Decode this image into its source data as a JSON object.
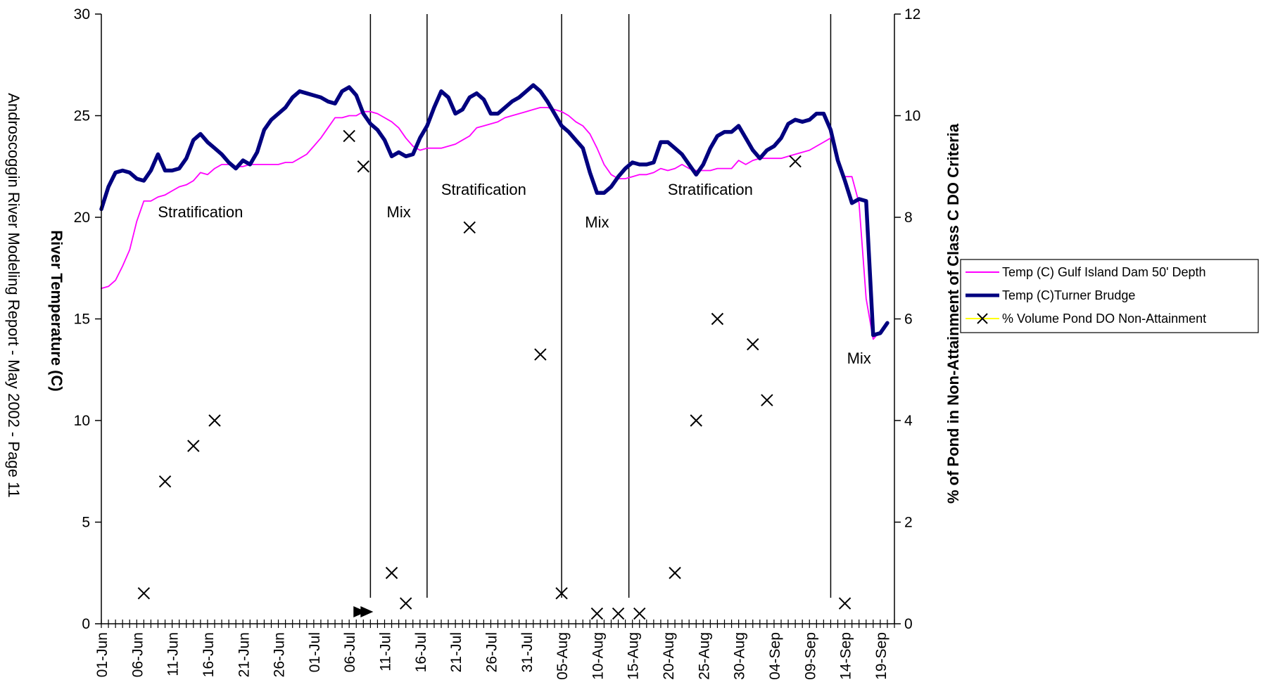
{
  "chart_data": {
    "type": "line",
    "side_note": "Androscoggin River Modeling Report - May 2002 - Page 11",
    "ylabel": "River Temperature (C)",
    "y2label": "% of Pond in Non-Attainment of Class C DO Criteria",
    "ylim": [
      0,
      30
    ],
    "y2lim": [
      0,
      12
    ],
    "yticks": [
      0,
      5,
      10,
      15,
      20,
      25,
      30
    ],
    "y2ticks": [
      0,
      2,
      4,
      6,
      8,
      10,
      12
    ],
    "x_start_day": 0,
    "x_end_day": 112,
    "x_tick_labels": [
      {
        "day": 0,
        "label": "01-Jun"
      },
      {
        "day": 5,
        "label": "06-Jun"
      },
      {
        "day": 10,
        "label": "11-Jun"
      },
      {
        "day": 15,
        "label": "16-Jun"
      },
      {
        "day": 20,
        "label": "21-Jun"
      },
      {
        "day": 25,
        "label": "26-Jun"
      },
      {
        "day": 30,
        "label": "01-Jul"
      },
      {
        "day": 35,
        "label": "06-Jul"
      },
      {
        "day": 40,
        "label": "11-Jul"
      },
      {
        "day": 45,
        "label": "16-Jul"
      },
      {
        "day": 50,
        "label": "21-Jul"
      },
      {
        "day": 55,
        "label": "26-Jul"
      },
      {
        "day": 60,
        "label": "31-Jul"
      },
      {
        "day": 65,
        "label": "05-Aug"
      },
      {
        "day": 70,
        "label": "10-Aug"
      },
      {
        "day": 75,
        "label": "15-Aug"
      },
      {
        "day": 80,
        "label": "20-Aug"
      },
      {
        "day": 85,
        "label": "25-Aug"
      },
      {
        "day": 90,
        "label": "30-Aug"
      },
      {
        "day": 95,
        "label": "04-Sep"
      },
      {
        "day": 100,
        "label": "09-Sep"
      },
      {
        "day": 105,
        "label": "14-Sep"
      },
      {
        "day": 110,
        "label": "19-Sep"
      }
    ],
    "period_dividers_day": [
      38,
      46,
      65,
      74.5,
      103
    ],
    "annotations": [
      {
        "text": "Stratification",
        "day": 14,
        "y": 20
      },
      {
        "text": "Mix",
        "day": 42,
        "y": 20
      },
      {
        "text": "Stratification",
        "day": 54,
        "y": 21.1
      },
      {
        "text": "Mix",
        "day": 70,
        "y": 19.5
      },
      {
        "text": "Stratification",
        "day": 86,
        "y": 21.1
      },
      {
        "text": "Mix",
        "day": 107,
        "y": 12.8
      }
    ],
    "series": [
      {
        "name": "Temp (C) Gulf Island Dam 50' Depth",
        "color": "#ff00ff",
        "axis": "left",
        "points": [
          [
            0,
            16.5
          ],
          [
            1,
            16.6
          ],
          [
            2,
            16.9
          ],
          [
            3,
            17.6
          ],
          [
            4,
            18.4
          ],
          [
            5,
            19.8
          ],
          [
            6,
            20.8
          ],
          [
            7,
            20.8
          ],
          [
            8,
            21.0
          ],
          [
            9,
            21.1
          ],
          [
            10,
            21.3
          ],
          [
            11,
            21.5
          ],
          [
            12,
            21.6
          ],
          [
            13,
            21.8
          ],
          [
            14,
            22.2
          ],
          [
            15,
            22.1
          ],
          [
            16,
            22.4
          ],
          [
            17,
            22.6
          ],
          [
            18,
            22.6
          ],
          [
            19,
            22.5
          ],
          [
            20,
            22.5
          ],
          [
            21,
            22.6
          ],
          [
            22,
            22.6
          ],
          [
            23,
            22.6
          ],
          [
            24,
            22.6
          ],
          [
            25,
            22.6
          ],
          [
            26,
            22.7
          ],
          [
            27,
            22.7
          ],
          [
            28,
            22.9
          ],
          [
            29,
            23.1
          ],
          [
            30,
            23.5
          ],
          [
            31,
            23.9
          ],
          [
            32,
            24.4
          ],
          [
            33,
            24.9
          ],
          [
            34,
            24.9
          ],
          [
            35,
            25.0
          ],
          [
            36,
            25.0
          ],
          [
            37,
            25.2
          ],
          [
            38,
            25.2
          ],
          [
            39,
            25.1
          ],
          [
            40,
            24.9
          ],
          [
            41,
            24.7
          ],
          [
            42,
            24.4
          ],
          [
            43,
            23.9
          ],
          [
            44,
            23.5
          ],
          [
            45,
            23.3
          ],
          [
            46,
            23.4
          ],
          [
            47,
            23.4
          ],
          [
            48,
            23.4
          ],
          [
            49,
            23.5
          ],
          [
            50,
            23.6
          ],
          [
            51,
            23.8
          ],
          [
            52,
            24.0
          ],
          [
            53,
            24.4
          ],
          [
            54,
            24.5
          ],
          [
            55,
            24.6
          ],
          [
            56,
            24.7
          ],
          [
            57,
            24.9
          ],
          [
            58,
            25.0
          ],
          [
            59,
            25.1
          ],
          [
            60,
            25.2
          ],
          [
            61,
            25.3
          ],
          [
            62,
            25.4
          ],
          [
            63,
            25.4
          ],
          [
            64,
            25.3
          ],
          [
            65,
            25.2
          ],
          [
            66,
            25.0
          ],
          [
            67,
            24.7
          ],
          [
            68,
            24.5
          ],
          [
            69,
            24.1
          ],
          [
            70,
            23.4
          ],
          [
            71,
            22.6
          ],
          [
            72,
            22.1
          ],
          [
            73,
            21.9
          ],
          [
            74,
            21.9
          ],
          [
            75,
            22.0
          ],
          [
            76,
            22.1
          ],
          [
            77,
            22.1
          ],
          [
            78,
            22.2
          ],
          [
            79,
            22.4
          ],
          [
            80,
            22.3
          ],
          [
            81,
            22.4
          ],
          [
            82,
            22.6
          ],
          [
            83,
            22.4
          ],
          [
            84,
            22.3
          ],
          [
            85,
            22.3
          ],
          [
            86,
            22.3
          ],
          [
            87,
            22.4
          ],
          [
            88,
            22.4
          ],
          [
            89,
            22.4
          ],
          [
            90,
            22.8
          ],
          [
            91,
            22.6
          ],
          [
            92,
            22.8
          ],
          [
            93,
            22.9
          ],
          [
            94,
            22.9
          ],
          [
            95,
            22.9
          ],
          [
            96,
            22.9
          ],
          [
            97,
            23.0
          ],
          [
            98,
            23.1
          ],
          [
            99,
            23.2
          ],
          [
            100,
            23.3
          ],
          [
            101,
            23.5
          ],
          [
            102,
            23.7
          ],
          [
            103,
            23.9
          ],
          null,
          [
            105,
            22.0
          ],
          [
            106,
            22.0
          ],
          [
            107,
            20.7
          ],
          [
            108,
            16.0
          ],
          [
            109,
            14.0
          ],
          [
            110,
            14.4
          ]
        ]
      },
      {
        "name": "Temp (C)Turner Brudge",
        "color": "#00007f",
        "axis": "left",
        "points": [
          [
            0,
            20.4
          ],
          [
            1,
            21.5
          ],
          [
            2,
            22.2
          ],
          [
            3,
            22.3
          ],
          [
            4,
            22.2
          ],
          [
            5,
            21.9
          ],
          [
            6,
            21.8
          ],
          [
            7,
            22.3
          ],
          [
            8,
            23.1
          ],
          [
            9,
            22.3
          ],
          [
            10,
            22.3
          ],
          [
            11,
            22.4
          ],
          [
            12,
            22.9
          ],
          [
            13,
            23.8
          ],
          [
            14,
            24.1
          ],
          [
            15,
            23.7
          ],
          [
            16,
            23.4
          ],
          [
            17,
            23.1
          ],
          [
            18,
            22.7
          ],
          [
            19,
            22.4
          ],
          [
            20,
            22.8
          ],
          [
            21,
            22.6
          ],
          [
            22,
            23.2
          ],
          [
            23,
            24.3
          ],
          [
            24,
            24.8
          ],
          [
            25,
            25.1
          ],
          [
            26,
            25.4
          ],
          [
            27,
            25.9
          ],
          [
            28,
            26.2
          ],
          [
            29,
            26.1
          ],
          [
            30,
            26.0
          ],
          [
            31,
            25.9
          ],
          [
            32,
            25.7
          ],
          [
            33,
            25.6
          ],
          [
            34,
            26.2
          ],
          [
            35,
            26.4
          ],
          [
            36,
            26.0
          ],
          [
            37,
            25.1
          ],
          [
            38,
            24.6
          ],
          [
            39,
            24.3
          ],
          [
            40,
            23.8
          ],
          [
            41,
            23.0
          ],
          [
            42,
            23.2
          ],
          [
            43,
            23.0
          ],
          [
            44,
            23.1
          ],
          [
            45,
            23.9
          ],
          [
            46,
            24.5
          ],
          [
            47,
            25.4
          ],
          [
            48,
            26.2
          ],
          [
            49,
            25.9
          ],
          [
            50,
            25.1
          ],
          [
            51,
            25.3
          ],
          [
            52,
            25.9
          ],
          [
            53,
            26.1
          ],
          [
            54,
            25.8
          ],
          [
            55,
            25.1
          ],
          [
            56,
            25.1
          ],
          [
            57,
            25.4
          ],
          [
            58,
            25.7
          ],
          [
            59,
            25.9
          ],
          [
            60,
            26.2
          ],
          [
            61,
            26.5
          ],
          [
            62,
            26.2
          ],
          [
            63,
            25.7
          ],
          [
            64,
            25.1
          ],
          [
            65,
            24.5
          ],
          [
            66,
            24.2
          ],
          [
            67,
            23.8
          ],
          [
            68,
            23.4
          ],
          [
            69,
            22.2
          ],
          [
            70,
            21.2
          ],
          [
            71,
            21.2
          ],
          [
            72,
            21.5
          ],
          [
            73,
            22.0
          ],
          [
            74,
            22.4
          ],
          [
            75,
            22.7
          ],
          [
            76,
            22.6
          ],
          [
            77,
            22.6
          ],
          [
            78,
            22.7
          ],
          [
            79,
            23.7
          ],
          [
            80,
            23.7
          ],
          [
            81,
            23.4
          ],
          [
            82,
            23.1
          ],
          [
            83,
            22.6
          ],
          [
            84,
            22.1
          ],
          [
            85,
            22.6
          ],
          [
            86,
            23.4
          ],
          [
            87,
            24.0
          ],
          [
            88,
            24.2
          ],
          [
            89,
            24.2
          ],
          [
            90,
            24.5
          ],
          [
            91,
            23.9
          ],
          [
            92,
            23.3
          ],
          [
            93,
            22.9
          ],
          [
            94,
            23.3
          ],
          [
            95,
            23.5
          ],
          [
            96,
            23.9
          ],
          [
            97,
            24.6
          ],
          [
            98,
            24.8
          ],
          [
            99,
            24.7
          ],
          [
            100,
            24.8
          ],
          [
            101,
            25.1
          ],
          [
            102,
            25.1
          ],
          [
            103,
            24.3
          ],
          [
            104,
            22.8
          ],
          [
            105,
            21.8
          ],
          [
            106,
            20.7
          ],
          [
            107,
            20.9
          ],
          [
            108,
            20.8
          ],
          [
            109,
            14.2
          ],
          [
            110,
            14.3
          ],
          [
            111,
            14.8
          ]
        ]
      },
      {
        "name": "% Volume Pond DO Non-Attainment",
        "color": "#ffff00",
        "marker_color": "#000000",
        "axis": "right",
        "markers": [
          [
            6,
            0.6
          ],
          [
            9,
            2.8
          ],
          [
            13,
            3.5
          ],
          [
            16,
            4.0
          ],
          [
            35,
            9.6
          ],
          [
            37,
            9.0
          ],
          [
            41,
            1.0
          ],
          [
            43,
            0.4
          ],
          [
            52,
            7.8
          ],
          [
            62,
            5.3
          ],
          [
            65,
            0.6
          ],
          [
            70,
            0.2
          ],
          [
            73,
            0.2
          ],
          [
            76,
            0.2
          ],
          [
            81,
            1.0
          ],
          [
            84,
            4.0
          ],
          [
            87,
            6.0
          ],
          [
            92,
            5.5
          ],
          [
            94,
            4.4
          ],
          [
            98,
            9.1
          ],
          [
            105,
            0.4
          ]
        ]
      }
    ]
  }
}
